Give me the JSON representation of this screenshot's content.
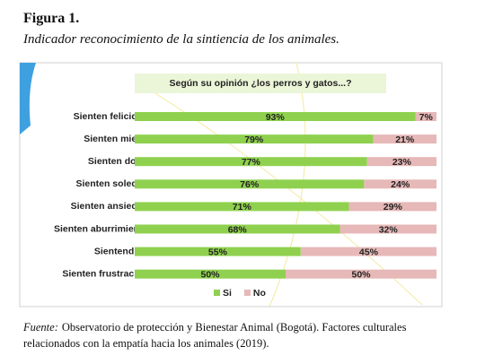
{
  "figure_label": "Figura 1.",
  "caption": "Indicador reconocimiento de la sintiencia de los animales.",
  "chart_data": {
    "type": "stacked-bar",
    "orientation": "horizontal",
    "title": "Según su opinión ¿los perros y gatos...?",
    "categories": [
      "Sienten felicidad",
      "Sienten miedo",
      "Sienten dolor",
      "Sienten soledad",
      "Sienten ansiedad",
      "Sienten aburrimiento",
      "Sientend ira",
      "Sienten frustración"
    ],
    "series": [
      {
        "name": "Si",
        "color": "#8fd14f",
        "values": [
          93,
          79,
          77,
          76,
          71,
          68,
          55,
          50
        ],
        "value_labels": [
          "93%",
          "79%",
          "77%",
          "76%",
          "71%",
          "68%",
          "55%",
          "50%"
        ]
      },
      {
        "name": "No",
        "color": "#e6b8b7",
        "values": [
          7,
          21,
          23,
          24,
          29,
          32,
          45,
          50
        ],
        "value_labels": [
          "7%",
          "21%",
          "23%",
          "24%",
          "29%",
          "32%",
          "45%",
          "50%"
        ]
      }
    ],
    "xlim": [
      0,
      100
    ],
    "legend": "bottom"
  },
  "source": {
    "label": "Fuente:",
    "text": "Observatorio de protección y Bienestar Animal (Bogotá). Factores culturales relacionados con la empatía hacia los animales (2019)."
  }
}
